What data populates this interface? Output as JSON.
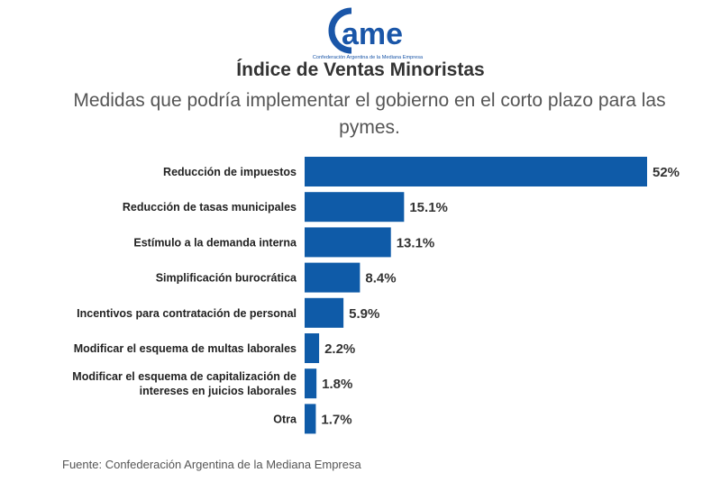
{
  "logo": {
    "text": "ame",
    "tagline": "Confederación Argentina de la Mediana Empresa"
  },
  "header": {
    "title": "Índice de Ventas Minoristas",
    "subtitle": "Medidas que podría implementar el gobierno en el corto plazo para las pymes."
  },
  "footer": {
    "source": "Fuente: Confederación Argentina de la Mediana Empresa"
  },
  "colors": {
    "bar": "#0f5ba8",
    "logo": "#1a56a8",
    "label": "#222222"
  },
  "chart_data": {
    "type": "bar",
    "orientation": "horizontal",
    "categories": [
      [
        "Reducción de impuestos"
      ],
      [
        "Reducción de tasas municipales"
      ],
      [
        "Estímulo a la demanda interna"
      ],
      [
        "Simplificación burocrática"
      ],
      [
        "Incentivos para contratación de personal"
      ],
      [
        "Modificar el esquema de multas laborales"
      ],
      [
        "Modificar el esquema de capitalización de",
        "intereses en juicios laborales"
      ],
      [
        "Otra"
      ]
    ],
    "values": [
      52,
      15.1,
      13.1,
      8.4,
      5.9,
      2.2,
      1.8,
      1.7
    ],
    "value_labels": [
      "52%",
      "15.1%",
      "13.1%",
      "8.4%",
      "5.9%",
      "2.2%",
      "1.8%",
      "1.7%"
    ],
    "xlim": [
      0,
      52
    ],
    "grid": false,
    "legend": "none"
  }
}
